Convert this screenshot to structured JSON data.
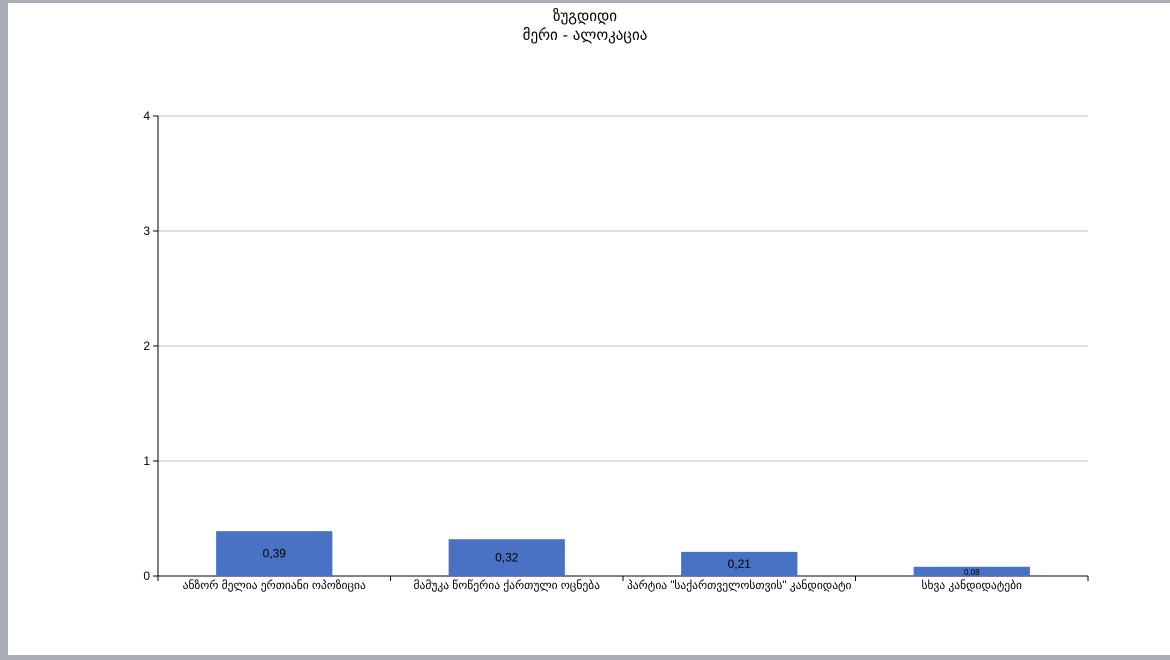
{
  "chart_data": {
    "type": "bar",
    "title": "ზუგდიდი",
    "subtitle": "მერი - ალოკაცია",
    "categories": [
      "ანზორ მელია ერთიანი ოპოზიცია",
      "მამუკა წოწერია ქართული ოცნება",
      "პარტია \"საქართველოსთვის\" კანდიდატი",
      "სხვა კანდიდატები"
    ],
    "values": [
      0.39,
      0.32,
      0.21,
      0.08
    ],
    "data_labels": [
      "0,39",
      "0,32",
      "0,21",
      "0,08"
    ],
    "ylim": [
      0,
      4
    ],
    "yticks": [
      "0",
      "1",
      "2",
      "3",
      "4"
    ],
    "grid": true,
    "bar_color": "#4a72c4",
    "grid_color": "#bfbfbf"
  }
}
